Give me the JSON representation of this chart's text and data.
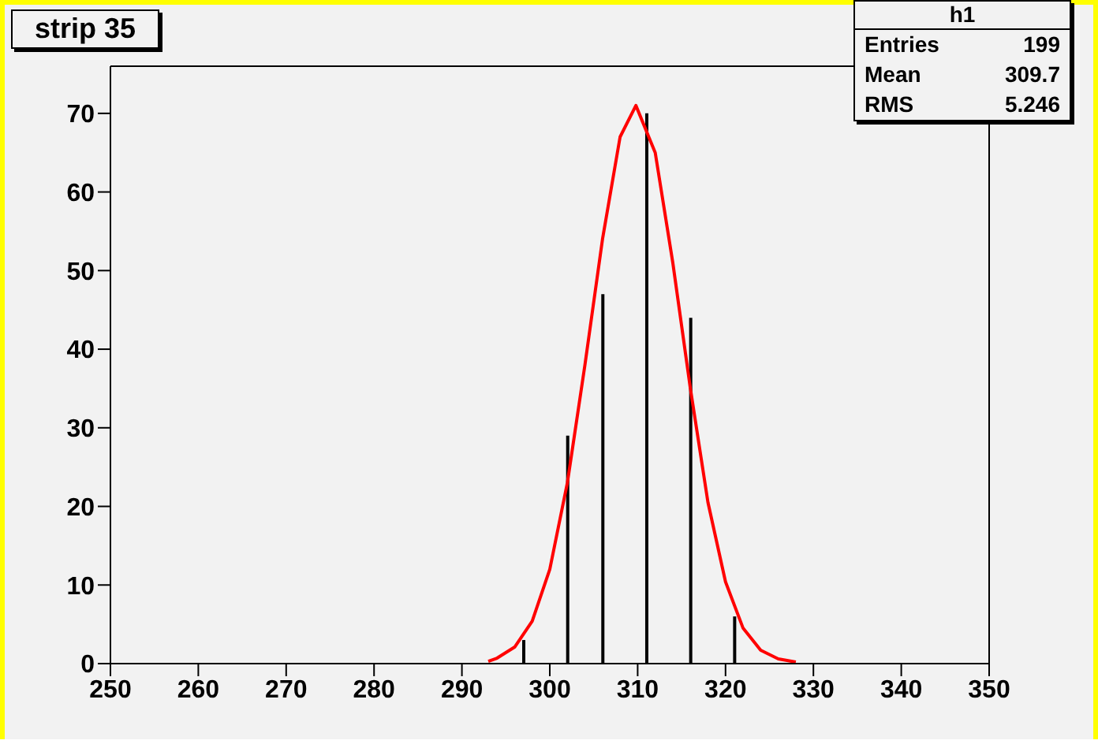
{
  "chart_data": {
    "type": "bar",
    "title": "strip 35",
    "annotations": [
      "h1",
      "Entries",
      "199",
      "Mean",
      "309.7",
      "RMS",
      "5.246"
    ],
    "series": [
      {
        "color": "#000000",
        "x": [
          297,
          302,
          306,
          311,
          316,
          321
        ],
        "values": [
          3,
          29,
          47,
          70,
          44,
          6
        ]
      },
      {
        "type": "line",
        "color": "#ff0000",
        "x": [
          293,
          294,
          296,
          298,
          300,
          302,
          304,
          306,
          308,
          309.8,
          312,
          314,
          316,
          318,
          320,
          322,
          324,
          326,
          328
        ],
        "values": [
          0.3,
          0.7,
          2.1,
          5.4,
          12,
          23,
          38,
          54,
          67,
          71,
          65,
          51,
          35,
          20.5,
          10.4,
          4.5,
          1.7,
          0.6,
          0.2
        ]
      }
    ],
    "xlim": [
      250,
      350
    ],
    "xticks": [
      250,
      260,
      270,
      280,
      290,
      300,
      310,
      320,
      330,
      340,
      350
    ],
    "ylim": [
      0,
      76
    ],
    "yticks": [
      0,
      10,
      20,
      30,
      40,
      50,
      60,
      70
    ],
    "grid": false,
    "legend": false,
    "marker": "none",
    "line_style": "solid"
  }
}
